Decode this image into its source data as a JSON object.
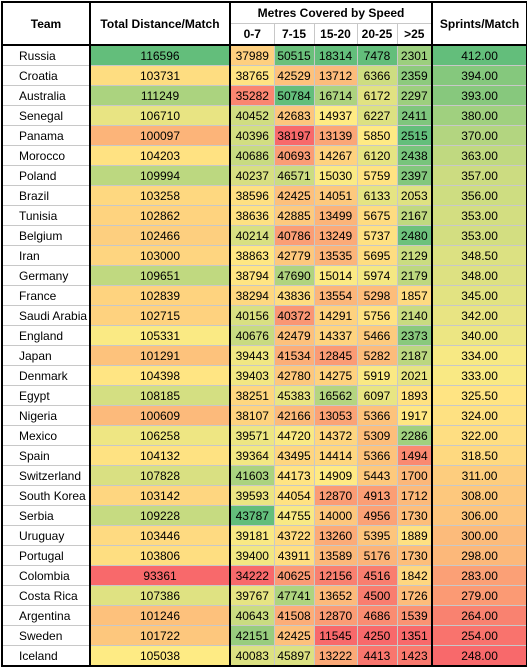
{
  "header": {
    "team": "Team",
    "distance": "Total Distance/Match",
    "speed": "Metres Covered by Speed",
    "bands": [
      "0-7",
      "7-15",
      "15-20",
      "20-25",
      ">25"
    ],
    "sprints": "Sprints/Match"
  },
  "table": {
    "rows": [
      [
        "Russia",
        116596,
        37989,
        50515,
        18314,
        7478,
        2301,
        "412.00"
      ],
      [
        "Croatia",
        103731,
        38765,
        42529,
        13712,
        6366,
        2359,
        "394.00"
      ],
      [
        "Australia",
        111249,
        35282,
        50784,
        16714,
        6172,
        2297,
        "393.00"
      ],
      [
        "Senegal",
        106710,
        40452,
        42683,
        14937,
        6227,
        2411,
        "380.00"
      ],
      [
        "Panama",
        100097,
        40396,
        38197,
        13139,
        5850,
        2515,
        "370.00"
      ],
      [
        "Morocco",
        104203,
        40686,
        40693,
        14267,
        6120,
        2438,
        "363.00"
      ],
      [
        "Poland",
        109994,
        40237,
        46571,
        15030,
        5759,
        2397,
        "357.00"
      ],
      [
        "Brazil",
        103258,
        38596,
        42425,
        14051,
        6133,
        2053,
        "356.00"
      ],
      [
        "Tunisia",
        102862,
        38636,
        42885,
        13499,
        5675,
        2167,
        "353.00"
      ],
      [
        "Belgium",
        102466,
        40214,
        40786,
        13249,
        5737,
        2480,
        "353.00"
      ],
      [
        "Iran",
        103000,
        38863,
        42779,
        13535,
        5695,
        2129,
        "348.50"
      ],
      [
        "Germany",
        109651,
        38794,
        47690,
        15014,
        5974,
        2179,
        "348.00"
      ],
      [
        "France",
        102839,
        38294,
        43836,
        13554,
        5298,
        1857,
        "345.00"
      ],
      [
        "Saudi Arabia",
        102715,
        40156,
        40372,
        14291,
        5756,
        2140,
        "342.00"
      ],
      [
        "England",
        105331,
        40676,
        42479,
        14337,
        5466,
        2373,
        "340.00"
      ],
      [
        "Japan",
        101291,
        39443,
        41534,
        12845,
        5282,
        2187,
        "334.00"
      ],
      [
        "Denmark",
        104398,
        39403,
        42780,
        14275,
        5919,
        2021,
        "333.00"
      ],
      [
        "Egypt",
        108185,
        38251,
        45383,
        16562,
        6097,
        1893,
        "325.50"
      ],
      [
        "Nigeria",
        100609,
        38107,
        42166,
        13053,
        5366,
        1917,
        "324.00"
      ],
      [
        "Mexico",
        106258,
        39571,
        44720,
        14372,
        5309,
        2286,
        "322.00"
      ],
      [
        "Spain",
        104132,
        39364,
        43495,
        14414,
        5366,
        1494,
        "318.50"
      ],
      [
        "Switzerland",
        107828,
        41603,
        44173,
        14909,
        5443,
        1700,
        "311.00"
      ],
      [
        "South Korea",
        103142,
        39593,
        44054,
        12870,
        4913,
        1712,
        "308.00"
      ],
      [
        "Serbia",
        109228,
        43787,
        44755,
        14000,
        4956,
        1730,
        "306.00"
      ],
      [
        "Uruguay",
        103446,
        39181,
        43722,
        13260,
        5395,
        1889,
        "300.00"
      ],
      [
        "Portugal",
        103806,
        39400,
        43911,
        13589,
        5176,
        1730,
        "298.00"
      ],
      [
        "Colombia",
        93361,
        34222,
        40625,
        12156,
        4516,
        1842,
        "283.00"
      ],
      [
        "Costa Rica",
        107386,
        39767,
        47741,
        13652,
        4500,
        1726,
        "279.00"
      ],
      [
        "Argentina",
        101246,
        40643,
        41508,
        12870,
        4686,
        1539,
        "264.00"
      ],
      [
        "Sweden",
        101722,
        42151,
        42425,
        11545,
        4250,
        1351,
        "254.00"
      ],
      [
        "Iceland",
        105038,
        40083,
        45897,
        13222,
        4413,
        1423,
        "248.00"
      ]
    ]
  }
}
